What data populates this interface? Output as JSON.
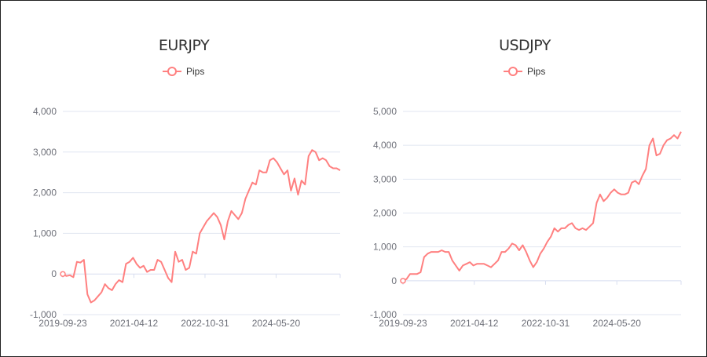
{
  "chart_data": [
    {
      "type": "line",
      "title": "EURJPY",
      "legend": [
        "Pips"
      ],
      "legend_placement": "top-center",
      "color": "#ff8080",
      "grid": true,
      "ylim": [
        -1000,
        4000
      ],
      "yticks": [
        "-1,000",
        "0",
        "1,000",
        "2,000",
        "3,000",
        "4,000"
      ],
      "ytick_values": [
        -1000,
        0,
        1000,
        2000,
        3000,
        4000
      ],
      "xticks": [
        "2019-09-23",
        "2021-04-12",
        "2022-10-31",
        "2024-05-20"
      ],
      "series": [
        {
          "name": "Pips",
          "values": [
            0,
            -50,
            -30,
            -80,
            300,
            280,
            350,
            -500,
            -700,
            -650,
            -550,
            -450,
            -250,
            -350,
            -400,
            -250,
            -150,
            -200,
            250,
            300,
            400,
            250,
            150,
            200,
            50,
            100,
            100,
            350,
            300,
            100,
            -100,
            -200,
            550,
            300,
            350,
            100,
            150,
            550,
            500,
            1000,
            1150,
            1300,
            1400,
            1500,
            1400,
            1200,
            850,
            1300,
            1550,
            1450,
            1350,
            1500,
            1850,
            2050,
            2250,
            2200,
            2550,
            2500,
            2500,
            2800,
            2850,
            2750,
            2600,
            2450,
            2550,
            2050,
            2350,
            1950,
            2300,
            2200,
            2900,
            3050,
            3000,
            2800,
            2850,
            2800,
            2650,
            2600,
            2600,
            2550
          ]
        }
      ]
    },
    {
      "type": "line",
      "title": "USDJPY",
      "legend": [
        "Pips"
      ],
      "legend_placement": "top-center",
      "color": "#ff8080",
      "grid": true,
      "ylim": [
        -1000,
        5000
      ],
      "yticks": [
        "-1,000",
        "0",
        "1,000",
        "2,000",
        "3,000",
        "4,000",
        "5,000"
      ],
      "ytick_values": [
        -1000,
        0,
        1000,
        2000,
        3000,
        4000,
        5000
      ],
      "xticks": [
        "2019-09-23",
        "2021-04-12",
        "2022-10-31",
        "2024-05-20"
      ],
      "series": [
        {
          "name": "Pips",
          "values": [
            0,
            50,
            200,
            200,
            200,
            250,
            700,
            800,
            850,
            850,
            850,
            900,
            850,
            850,
            600,
            450,
            300,
            450,
            500,
            550,
            450,
            500,
            500,
            500,
            450,
            400,
            500,
            600,
            850,
            850,
            950,
            1100,
            1050,
            900,
            1050,
            850,
            600,
            400,
            550,
            800,
            950,
            1150,
            1300,
            1550,
            1450,
            1550,
            1550,
            1650,
            1700,
            1550,
            1500,
            1550,
            1500,
            1600,
            1700,
            2300,
            2550,
            2350,
            2450,
            2600,
            2700,
            2600,
            2550,
            2550,
            2600,
            2900,
            2950,
            2850,
            3100,
            3300,
            4000,
            4200,
            3700,
            3750,
            4000,
            4150,
            4200,
            4300,
            4200,
            4400
          ]
        }
      ]
    }
  ],
  "x": [
    "2019-09-23",
    "2019-10-21",
    "2019-11-18",
    "2019-12-16",
    "2020-01-13",
    "2020-02-10",
    "2020-03-09",
    "2020-04-06",
    "2020-05-04",
    "2020-06-01",
    "2020-06-29",
    "2020-07-27",
    "2020-08-24",
    "2020-09-21",
    "2020-10-19",
    "2020-11-16",
    "2020-12-14",
    "2021-01-11",
    "2021-02-08",
    "2021-03-08",
    "2021-04-05",
    "2021-05-03",
    "2021-05-31",
    "2021-06-28",
    "2021-07-26",
    "2021-08-23",
    "2021-09-20",
    "2021-10-18",
    "2021-11-15",
    "2021-12-13",
    "2022-01-10",
    "2022-02-07",
    "2022-03-07",
    "2022-04-04",
    "2022-05-02",
    "2022-05-30",
    "2022-06-27",
    "2022-07-25",
    "2022-08-22",
    "2022-09-19",
    "2022-10-17",
    "2022-11-14",
    "2022-12-12",
    "2023-01-09",
    "2023-02-06",
    "2023-03-06",
    "2023-04-03",
    "2023-05-01",
    "2023-05-29",
    "2023-06-26",
    "2023-07-24",
    "2023-08-21",
    "2023-09-18",
    "2023-10-16",
    "2023-11-13",
    "2023-12-11",
    "2024-01-08",
    "2024-02-05",
    "2024-03-04",
    "2024-04-01",
    "2024-04-29",
    "2024-05-27",
    "2024-06-24",
    "2024-07-22",
    "2024-08-19",
    "2024-09-16",
    "2024-10-14",
    "2024-11-11",
    "2024-12-09",
    "2025-01-06",
    "2025-02-03",
    "2025-03-03",
    "2025-03-31",
    "2025-04-28",
    "2025-05-26",
    "2025-06-23",
    "2025-07-21",
    "2025-08-18",
    "2025-09-15",
    "2025-10-13"
  ]
}
